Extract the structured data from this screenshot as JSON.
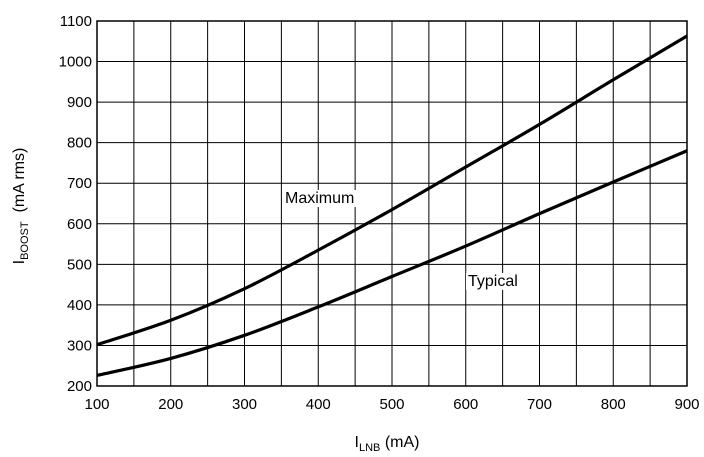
{
  "chart_data": {
    "type": "line",
    "title": "",
    "xlabel": {
      "main": "I",
      "sub": "LNB",
      "unit": " (mA)"
    },
    "ylabel": {
      "main": "I",
      "sub": "BOOST",
      "unit": "  (mA rms)"
    },
    "xlim": [
      100,
      900
    ],
    "ylim": [
      200,
      1100
    ],
    "xticks": [
      100,
      200,
      300,
      400,
      500,
      600,
      700,
      800,
      900
    ],
    "yticks": [
      200,
      300,
      400,
      500,
      600,
      700,
      800,
      900,
      1000,
      1100
    ],
    "grid": {
      "x_step": 50,
      "y_step": 100,
      "on": true
    },
    "series": [
      {
        "name": "Maximum",
        "color": "#000000",
        "points": [
          [
            100,
            302
          ],
          [
            200,
            362
          ],
          [
            300,
            440
          ],
          [
            400,
            535
          ],
          [
            500,
            635
          ],
          [
            600,
            740
          ],
          [
            700,
            845
          ],
          [
            800,
            955
          ],
          [
            900,
            1063
          ]
        ]
      },
      {
        "name": "Typical",
        "color": "#000000",
        "points": [
          [
            100,
            226
          ],
          [
            200,
            268
          ],
          [
            300,
            325
          ],
          [
            400,
            395
          ],
          [
            500,
            470
          ],
          [
            600,
            545
          ],
          [
            700,
            625
          ],
          [
            800,
            703
          ],
          [
            900,
            780
          ]
        ]
      }
    ]
  }
}
